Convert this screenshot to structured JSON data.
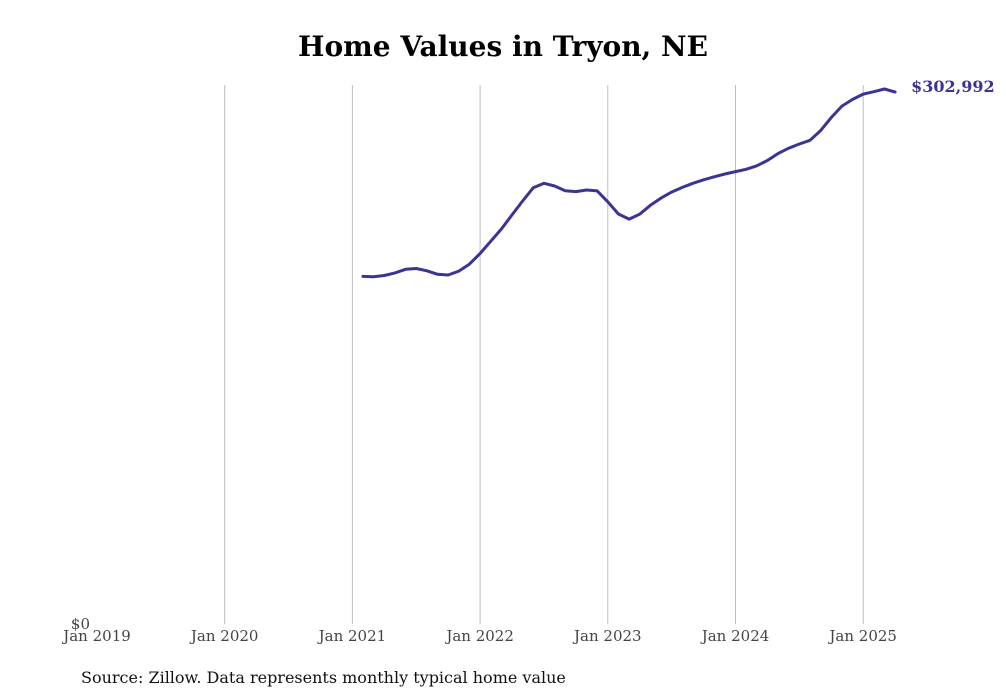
{
  "chart_data": {
    "type": "line",
    "title": "Home Values in Tryon, NE",
    "source": "Source: Zillow. Data represents monthly typical home value",
    "xlabel": "",
    "ylabel": "",
    "x_ticks": [
      "Jan 2019",
      "Jan 2020",
      "Jan 2021",
      "Jan 2022",
      "Jan 2023",
      "Jan 2024",
      "Jan 2025"
    ],
    "y_ticks": [
      "$0"
    ],
    "end_label": "$302,992",
    "ylim": [
      0,
      307000
    ],
    "grid": "vertical",
    "colors": {
      "line": "#3a3494",
      "grid": "#bdbdbd"
    },
    "series": [
      {
        "points": [
          [
            "2021-02",
            198000
          ],
          [
            "2021-03",
            197800
          ],
          [
            "2021-04",
            198500
          ],
          [
            "2021-05",
            200000
          ],
          [
            "2021-06",
            202000
          ],
          [
            "2021-07",
            202500
          ],
          [
            "2021-08",
            201200
          ],
          [
            "2021-09",
            199200
          ],
          [
            "2021-10",
            198800
          ],
          [
            "2021-11",
            201000
          ],
          [
            "2021-12",
            205000
          ],
          [
            "2022-01",
            211000
          ],
          [
            "2022-02",
            218000
          ],
          [
            "2022-03",
            225000
          ],
          [
            "2022-04",
            233000
          ],
          [
            "2022-05",
            241000
          ],
          [
            "2022-06",
            248500
          ],
          [
            "2022-07",
            251000
          ],
          [
            "2022-08",
            249500
          ],
          [
            "2022-09",
            246800
          ],
          [
            "2022-10",
            246300
          ],
          [
            "2022-11",
            247200
          ],
          [
            "2022-12",
            246700
          ],
          [
            "2023-01",
            240500
          ],
          [
            "2023-02",
            233500
          ],
          [
            "2023-03",
            230600
          ],
          [
            "2023-04",
            233400
          ],
          [
            "2023-05",
            238500
          ],
          [
            "2023-06",
            242600
          ],
          [
            "2023-07",
            246000
          ],
          [
            "2023-08",
            248700
          ],
          [
            "2023-09",
            251000
          ],
          [
            "2023-10",
            253000
          ],
          [
            "2023-11",
            254700
          ],
          [
            "2023-12",
            256300
          ],
          [
            "2024-01",
            257700
          ],
          [
            "2024-02",
            259000
          ],
          [
            "2024-03",
            261000
          ],
          [
            "2024-04",
            264000
          ],
          [
            "2024-05",
            268000
          ],
          [
            "2024-06",
            271000
          ],
          [
            "2024-07",
            273400
          ],
          [
            "2024-08",
            275500
          ],
          [
            "2024-09",
            281000
          ],
          [
            "2024-10",
            288500
          ],
          [
            "2024-11",
            295000
          ],
          [
            "2024-12",
            298800
          ],
          [
            "2025-01",
            301800
          ],
          [
            "2025-02",
            303200
          ],
          [
            "2025-03",
            304700
          ],
          [
            "2025-04",
            302992
          ]
        ]
      }
    ]
  }
}
